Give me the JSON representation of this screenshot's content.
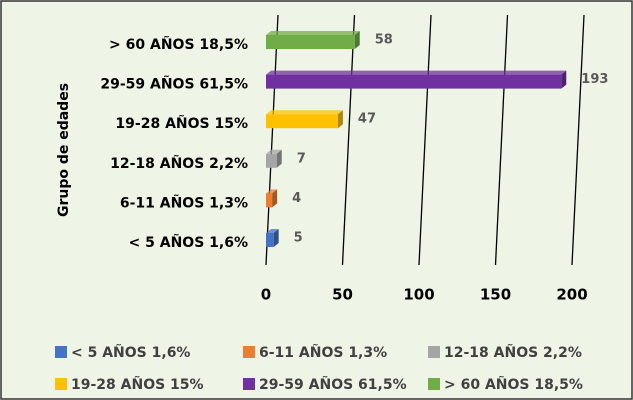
{
  "chart_data": {
    "type": "bar",
    "orientation": "horizontal",
    "y_label": "Grupo de edades",
    "categories": [
      "< 5 AÑOS 1,6%",
      "6-11 AÑOS  1,3%",
      "12-18 AÑOS 2,2%",
      "19-28 AÑOS 15%",
      "29-59 AÑOS 61,5%",
      "> 60 AÑOS 18,5%"
    ],
    "values": [
      5,
      4,
      7,
      47,
      193,
      58
    ],
    "colors": [
      "#4472c4",
      "#ed7d31",
      "#a5a5a5",
      "#ffc000",
      "#7030a0",
      "#70ad47"
    ],
    "xlim": [
      0,
      200
    ],
    "xticks": [
      0,
      50,
      100,
      150,
      200
    ],
    "grid": true,
    "legend": "bottom"
  }
}
